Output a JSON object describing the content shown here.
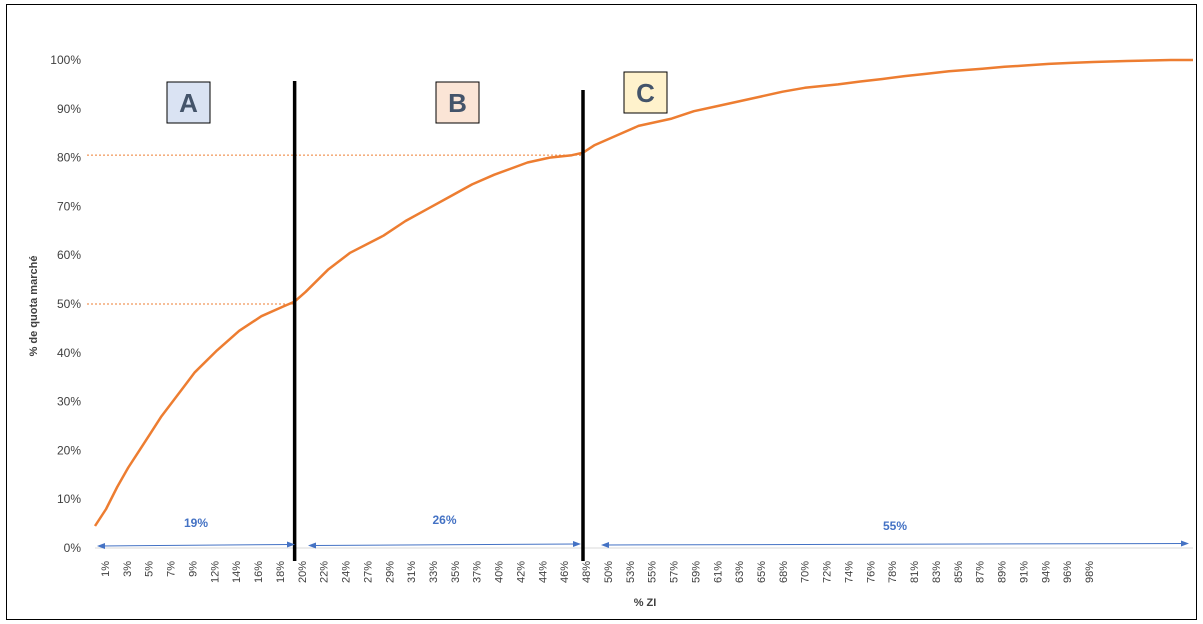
{
  "chart_data": {
    "type": "line",
    "title": "",
    "xlabel": "% ZI",
    "ylabel": "% de quota marché",
    "y_ticks": [
      "0%",
      "10%",
      "20%",
      "30%",
      "40%",
      "50%",
      "60%",
      "70%",
      "80%",
      "90%",
      "100%"
    ],
    "ylim": [
      0,
      100
    ],
    "xlim": [
      1,
      100
    ],
    "x_ticks": [
      "1%",
      "3%",
      "5%",
      "7%",
      "9%",
      "12%",
      "14%",
      "16%",
      "18%",
      "20%",
      "22%",
      "24%",
      "27%",
      "29%",
      "31%",
      "33%",
      "35%",
      "37%",
      "40%",
      "42%",
      "44%",
      "46%",
      "48%",
      "50%",
      "53%",
      "55%",
      "57%",
      "59%",
      "61%",
      "63%",
      "65%",
      "68%",
      "70%",
      "72%",
      "74%",
      "76%",
      "78%",
      "81%",
      "83%",
      "85%",
      "87%",
      "89%",
      "91%",
      "94%",
      "96%",
      "98%"
    ],
    "series": [
      {
        "name": "",
        "color": "#ed7d31",
        "x": [
          1,
          2,
          3,
          4,
          5,
          6,
          7,
          8,
          9,
          10,
          12,
          14,
          16,
          18,
          19,
          20,
          22,
          24,
          27,
          29,
          31,
          33,
          35,
          37,
          40,
          42,
          44,
          45,
          46,
          48,
          50,
          53,
          55,
          57,
          59,
          61,
          63,
          65,
          68,
          70,
          72,
          74,
          76,
          78,
          81,
          83,
          85,
          87,
          89,
          91,
          94,
          96,
          98,
          100
        ],
        "y": [
          4.5,
          8,
          12.5,
          16.5,
          20,
          23.5,
          27,
          30,
          33,
          36,
          40.5,
          44.5,
          47.5,
          49.5,
          50.5,
          52.5,
          57,
          60.5,
          64,
          67,
          69.5,
          72,
          74.5,
          76.5,
          79,
          80,
          80.5,
          81,
          82.5,
          84.5,
          86.5,
          88,
          89.5,
          90.5,
          91.5,
          92.5,
          93.5,
          94.3,
          95,
          95.6,
          96.1,
          96.7,
          97.2,
          97.7,
          98.2,
          98.6,
          98.9,
          99.2,
          99.4,
          99.6,
          99.8,
          99.9,
          100,
          100
        ]
      }
    ],
    "reference_lines": {
      "horizontal": [
        50,
        80.5
      ],
      "horizontal_color": "#ed7d31",
      "vertical_x": [
        19,
        45
      ],
      "vertical_color": "#000000"
    },
    "zones": [
      {
        "label": "A",
        "fill": "#dae3f3"
      },
      {
        "label": "B",
        "fill": "#fbe5d6"
      },
      {
        "label": "C",
        "fill": "#fff2cc"
      }
    ],
    "spans": [
      {
        "label": "19%",
        "from": 1,
        "to": 19
      },
      {
        "label": "26%",
        "from": 19,
        "to": 45
      },
      {
        "label": "55%",
        "from": 45,
        "to": 100
      }
    ],
    "span_color": "#4472c4",
    "grid": false,
    "legend": "none"
  }
}
